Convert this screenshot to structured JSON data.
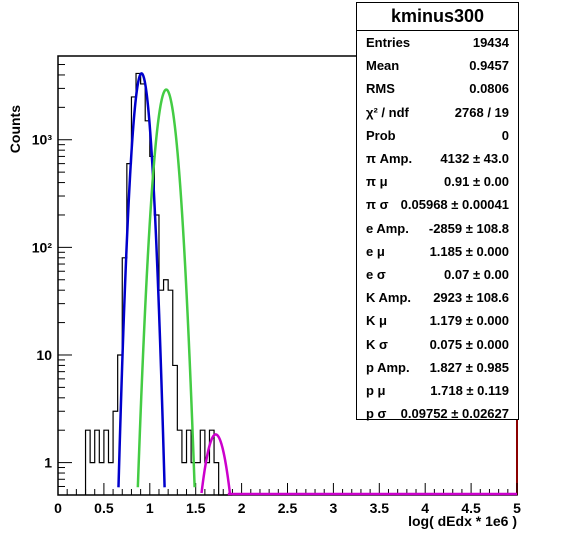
{
  "stats": {
    "title": "kminus300",
    "rows": [
      {
        "label": "Entries",
        "value": "19434"
      },
      {
        "label": "Mean",
        "value": "0.9457"
      },
      {
        "label": "RMS",
        "value": "0.0806"
      },
      {
        "label": "χ² / ndf",
        "value": "2768 / 19"
      },
      {
        "label": "Prob",
        "value": "0"
      },
      {
        "label": "π Amp.",
        "value": "4132 ± 43.0"
      },
      {
        "label": "π μ",
        "value": "0.91 ± 0.00"
      },
      {
        "label": "π σ",
        "value": "0.05968 ± 0.00041"
      },
      {
        "label": "e Amp.",
        "value": "-2859 ± 108.8"
      },
      {
        "label": "e μ",
        "value": "1.185 ± 0.000"
      },
      {
        "label": "e σ",
        "value": "0.07 ± 0.00"
      },
      {
        "label": "K Amp.",
        "value": "2923 ± 108.6"
      },
      {
        "label": "K μ",
        "value": "1.179 ± 0.000"
      },
      {
        "label": "K σ",
        "value": "0.075 ± 0.000"
      },
      {
        "label": "p Amp.",
        "value": "1.827 ± 0.985"
      },
      {
        "label": "p μ",
        "value": "1.718 ± 0.119"
      },
      {
        "label": "p σ",
        "value": "0.09752 ± 0.02627"
      }
    ]
  },
  "chart_data": {
    "type": "line",
    "title": "kminus300",
    "xlabel": "log( dEdx * 1e6 )",
    "ylabel": "Counts",
    "xlim": [
      0,
      5
    ],
    "ylim": [
      0.5,
      6000
    ],
    "yscale": "log",
    "x_ticks": [
      "0",
      "0.5",
      "1",
      "1.5",
      "2",
      "2.5",
      "3",
      "3.5",
      "4",
      "4.5",
      "5"
    ],
    "y_ticks": [
      "1",
      "10",
      "10²",
      "10³"
    ],
    "histogram": {
      "bin_edges": [
        0.3,
        0.35,
        0.4,
        0.45,
        0.5,
        0.55,
        0.6,
        0.65,
        0.7,
        0.75,
        0.8,
        0.85,
        0.9,
        0.95,
        1.0,
        1.05,
        1.1,
        1.15,
        1.2,
        1.25,
        1.3,
        1.35,
        1.4,
        1.45,
        1.5,
        1.55,
        1.6,
        1.65,
        1.7,
        1.75,
        1.8,
        1.85,
        1.9
      ],
      "counts": [
        2,
        1,
        2,
        1,
        2,
        1,
        3,
        10,
        80,
        600,
        2500,
        4132,
        3300,
        1500,
        700,
        200,
        40,
        50,
        40,
        8,
        2,
        1,
        2,
        1,
        1,
        2,
        1,
        2,
        1,
        0,
        0,
        0
      ]
    },
    "series": [
      {
        "name": "π",
        "color": "#0000cc",
        "amp": 4132,
        "mu": 0.91,
        "sigma": 0.05968
      },
      {
        "name": "K",
        "color": "#44cc44",
        "amp": 2923,
        "mu": 1.179,
        "sigma": 0.075
      },
      {
        "name": "p",
        "color": "#cc00cc",
        "amp": 1.827,
        "mu": 1.718,
        "sigma": 0.09752
      }
    ]
  }
}
